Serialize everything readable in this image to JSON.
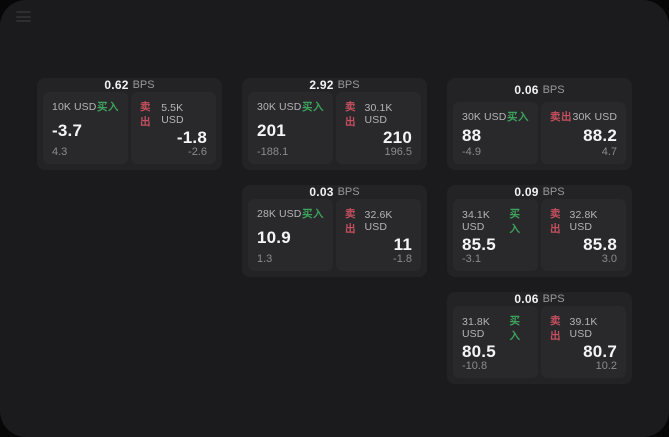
{
  "labels": {
    "buy": "买入",
    "sell": "卖出",
    "bps_suffix": "BPS"
  },
  "colors": {
    "page_bg": "#070708",
    "window_bg": "#1b1b1d",
    "card_bg": "#232326",
    "panel_bg": "#29292c",
    "buy_green": "#3da35c",
    "sell_red": "#c44f5e",
    "text_primary": "#f5f5f7",
    "text_secondary": "#b4b4b8",
    "text_muted": "#8b8b8f"
  },
  "cards": [
    {
      "bps": "0.62",
      "col": 1,
      "row": 1,
      "buy": {
        "amount": "10K USD",
        "value": "-3.7",
        "sub": "4.3"
      },
      "sell": {
        "amount": "5.5K USD",
        "value": "-1.8",
        "sub": "-2.6"
      }
    },
    {
      "bps": "2.92",
      "col": 2,
      "row": 1,
      "buy": {
        "amount": "30K USD",
        "value": "201",
        "sub": "-188.1"
      },
      "sell": {
        "amount": "30.1K USD",
        "value": "210",
        "sub": "196.5"
      }
    },
    {
      "bps": "0.06",
      "col": 3,
      "row": 1,
      "buy": {
        "amount": "30K USD",
        "value": "88",
        "sub": "-4.9"
      },
      "sell": {
        "amount": "30K USD",
        "value": "88.2",
        "sub": "4.7"
      }
    },
    {
      "bps": "0.03",
      "col": 2,
      "row": 2,
      "buy": {
        "amount": "28K USD",
        "value": "10.9",
        "sub": "1.3"
      },
      "sell": {
        "amount": "32.6K USD",
        "value": "11",
        "sub": "-1.8"
      }
    },
    {
      "bps": "0.09",
      "col": 3,
      "row": 2,
      "buy": {
        "amount": "34.1K USD",
        "value": "85.5",
        "sub": "-3.1"
      },
      "sell": {
        "amount": "32.8K USD",
        "value": "85.8",
        "sub": "3.0"
      }
    },
    {
      "bps": "0.06",
      "col": 3,
      "row": 3,
      "buy": {
        "amount": "31.8K USD",
        "value": "80.5",
        "sub": "-10.8"
      },
      "sell": {
        "amount": "39.1K USD",
        "value": "80.7",
        "sub": "10.2"
      }
    }
  ]
}
